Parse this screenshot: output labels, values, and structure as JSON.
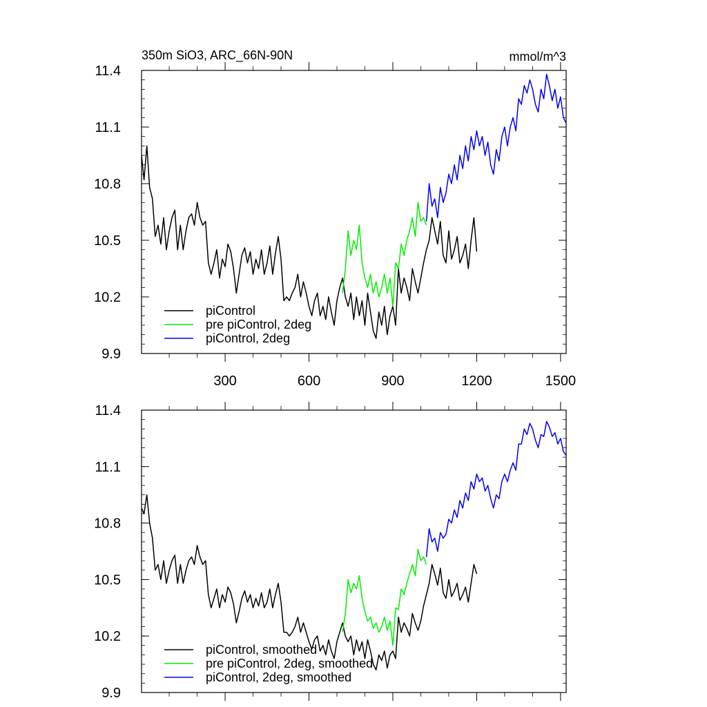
{
  "chart_data": [
    {
      "type": "line",
      "title": "350m SiO3, ARC_66N-90N",
      "units": "mmol/m^3",
      "xlabel": "",
      "ylabel": "",
      "xlim": [
        1,
        1520
      ],
      "ylim": [
        9.9,
        11.4
      ],
      "x_ticks": [
        300,
        600,
        900,
        1200,
        1500
      ],
      "y_ticks": [
        9.9,
        10.2,
        10.5,
        10.8,
        11.1,
        11.4
      ],
      "x_tick_labels": [
        "300",
        "600",
        "900",
        "1200",
        "1500"
      ],
      "y_tick_labels": [
        "9.9",
        "10.2",
        "10.5",
        "10.8",
        "11.1",
        "11.4"
      ],
      "grid": false,
      "legend_position": "bottom-left",
      "series": [
        {
          "name": "piControl",
          "color": "#000000",
          "x": [
            1,
            10,
            20,
            30,
            40,
            50,
            60,
            70,
            80,
            90,
            100,
            110,
            120,
            130,
            140,
            150,
            160,
            170,
            180,
            190,
            200,
            210,
            220,
            230,
            240,
            250,
            260,
            270,
            280,
            290,
            300,
            310,
            320,
            330,
            340,
            350,
            360,
            370,
            380,
            390,
            400,
            410,
            420,
            430,
            440,
            450,
            460,
            470,
            480,
            490,
            500,
            510,
            520,
            530,
            540,
            550,
            560,
            570,
            580,
            590,
            600,
            610,
            620,
            630,
            640,
            650,
            660,
            670,
            680,
            690,
            700,
            710,
            720,
            730,
            740,
            750,
            760,
            770,
            780,
            790,
            800,
            810,
            820,
            830,
            840,
            850,
            860,
            870,
            880,
            890,
            900,
            910,
            920,
            930,
            940,
            950,
            960,
            970,
            980,
            990,
            1000,
            1010,
            1020,
            1030,
            1040,
            1050,
            1060,
            1070,
            1080,
            1090,
            1100,
            1110,
            1120,
            1130,
            1140,
            1150,
            1160,
            1170,
            1180,
            1190,
            1200
          ],
          "y": [
            10.95,
            10.82,
            11.0,
            10.78,
            10.72,
            10.52,
            10.58,
            10.48,
            10.62,
            10.45,
            10.55,
            10.62,
            10.66,
            10.45,
            10.58,
            10.45,
            10.55,
            10.62,
            10.64,
            10.58,
            10.7,
            10.62,
            10.58,
            10.6,
            10.38,
            10.32,
            10.38,
            10.45,
            10.3,
            10.4,
            10.36,
            10.48,
            10.44,
            10.35,
            10.22,
            10.32,
            10.42,
            10.46,
            10.38,
            10.44,
            10.32,
            10.4,
            10.35,
            10.45,
            10.32,
            10.38,
            10.47,
            10.32,
            10.43,
            10.52,
            10.4,
            10.18,
            10.2,
            10.18,
            10.22,
            10.25,
            10.32,
            10.2,
            10.28,
            10.22,
            10.15,
            10.1,
            10.18,
            10.22,
            10.1,
            10.15,
            10.08,
            10.2,
            10.12,
            10.05,
            10.18,
            10.25,
            10.3,
            10.2,
            10.15,
            10.22,
            10.08,
            10.2,
            10.1,
            10.18,
            10.05,
            10.22,
            10.12,
            10.02,
            9.98,
            10.12,
            10.05,
            10.15,
            10.0,
            10.1,
            10.15,
            10.05,
            10.35,
            10.22,
            10.3,
            10.25,
            10.18,
            10.35,
            10.28,
            10.22,
            10.3,
            10.38,
            10.45,
            10.5,
            10.62,
            10.55,
            10.48,
            10.6,
            10.42,
            10.38,
            10.55,
            10.4,
            10.45,
            10.52,
            10.38,
            10.42,
            10.48,
            10.35,
            10.5,
            10.62,
            10.44
          ]
        },
        {
          "name": "pre piControl, 2deg",
          "color": "#00ee00",
          "x": [
            720,
            730,
            740,
            750,
            760,
            770,
            780,
            790,
            800,
            810,
            820,
            830,
            840,
            850,
            860,
            870,
            880,
            890,
            900,
            910,
            920,
            930,
            940,
            950,
            960,
            970,
            980,
            990,
            1000,
            1010,
            1020
          ],
          "y": [
            10.22,
            10.35,
            10.55,
            10.42,
            10.5,
            10.45,
            10.58,
            10.38,
            10.3,
            10.25,
            10.32,
            10.22,
            10.28,
            10.2,
            10.25,
            10.32,
            10.22,
            10.3,
            10.15,
            10.38,
            10.35,
            10.48,
            10.42,
            10.5,
            10.55,
            10.62,
            10.52,
            10.7,
            10.6,
            10.62,
            10.58
          ]
        },
        {
          "name": "piControl, 2deg",
          "color": "#0000ee",
          "x": [
            1020,
            1030,
            1040,
            1050,
            1060,
            1070,
            1080,
            1090,
            1100,
            1110,
            1120,
            1130,
            1140,
            1150,
            1160,
            1170,
            1180,
            1190,
            1200,
            1210,
            1220,
            1230,
            1240,
            1250,
            1260,
            1270,
            1280,
            1290,
            1300,
            1310,
            1320,
            1330,
            1340,
            1350,
            1360,
            1370,
            1380,
            1390,
            1400,
            1410,
            1420,
            1430,
            1440,
            1450,
            1460,
            1470,
            1480,
            1490,
            1500,
            1510,
            1520
          ],
          "y": [
            10.6,
            10.8,
            10.68,
            10.72,
            10.62,
            10.78,
            10.7,
            10.75,
            10.85,
            10.8,
            10.9,
            10.82,
            10.95,
            10.88,
            11.0,
            10.92,
            11.05,
            10.98,
            11.08,
            11.0,
            11.05,
            10.95,
            11.02,
            10.9,
            10.85,
            10.98,
            10.92,
            11.05,
            11.1,
            11.0,
            11.1,
            11.15,
            11.08,
            11.25,
            11.22,
            11.32,
            11.28,
            11.35,
            11.3,
            11.22,
            11.18,
            11.3,
            11.25,
            11.38,
            11.32,
            11.24,
            11.3,
            11.2,
            11.26,
            11.15,
            11.12
          ]
        }
      ]
    },
    {
      "type": "line",
      "title": "",
      "units": "",
      "xlabel": "",
      "ylabel": "",
      "xlim": [
        1,
        1520
      ],
      "ylim": [
        9.9,
        11.4
      ],
      "x_ticks": [
        300,
        600,
        900,
        1200,
        1500
      ],
      "y_ticks": [
        9.9,
        10.2,
        10.5,
        10.8,
        11.1,
        11.4
      ],
      "x_tick_labels": [],
      "y_tick_labels": [
        "9.9",
        "10.2",
        "10.5",
        "10.8",
        "11.1",
        "11.4"
      ],
      "grid": false,
      "legend_position": "bottom-left",
      "series": [
        {
          "name": "piControl, smoothed",
          "color": "#000000",
          "x": [
            1,
            10,
            20,
            30,
            40,
            50,
            60,
            70,
            80,
            90,
            100,
            110,
            120,
            130,
            140,
            150,
            160,
            170,
            180,
            190,
            200,
            210,
            220,
            230,
            240,
            250,
            260,
            270,
            280,
            290,
            300,
            310,
            320,
            330,
            340,
            350,
            360,
            370,
            380,
            390,
            400,
            410,
            420,
            430,
            440,
            450,
            460,
            470,
            480,
            490,
            500,
            510,
            520,
            530,
            540,
            550,
            560,
            570,
            580,
            590,
            600,
            610,
            620,
            630,
            640,
            650,
            660,
            670,
            680,
            690,
            700,
            710,
            720,
            730,
            740,
            750,
            760,
            770,
            780,
            790,
            800,
            810,
            820,
            830,
            840,
            850,
            860,
            870,
            880,
            890,
            900,
            910,
            920,
            930,
            940,
            950,
            960,
            970,
            980,
            990,
            1000,
            1010,
            1020,
            1030,
            1040,
            1050,
            1060,
            1070,
            1080,
            1090,
            1100,
            1110,
            1120,
            1130,
            1140,
            1150,
            1160,
            1170,
            1180,
            1190,
            1200
          ],
          "y": [
            10.88,
            10.85,
            10.95,
            10.8,
            10.72,
            10.55,
            10.58,
            10.5,
            10.6,
            10.48,
            10.55,
            10.6,
            10.63,
            10.48,
            10.58,
            10.48,
            10.55,
            10.6,
            10.62,
            10.58,
            10.68,
            10.62,
            10.58,
            10.6,
            10.42,
            10.35,
            10.4,
            10.45,
            10.35,
            10.42,
            10.38,
            10.46,
            10.43,
            10.37,
            10.27,
            10.33,
            10.4,
            10.44,
            10.38,
            10.42,
            10.35,
            10.4,
            10.36,
            10.43,
            10.35,
            10.38,
            10.45,
            10.35,
            10.42,
            10.48,
            10.38,
            10.22,
            10.22,
            10.2,
            10.22,
            10.25,
            10.3,
            10.22,
            10.27,
            10.22,
            10.17,
            10.13,
            10.18,
            10.2,
            10.12,
            10.15,
            10.1,
            10.18,
            10.12,
            10.08,
            10.17,
            10.22,
            10.27,
            10.2,
            10.17,
            10.2,
            10.1,
            10.18,
            10.12,
            10.17,
            10.08,
            10.18,
            10.12,
            10.05,
            10.02,
            10.1,
            10.07,
            10.12,
            10.03,
            10.1,
            10.12,
            10.08,
            10.3,
            10.22,
            10.27,
            10.24,
            10.2,
            10.32,
            10.27,
            10.23,
            10.28,
            10.36,
            10.42,
            10.48,
            10.58,
            10.53,
            10.47,
            10.56,
            10.43,
            10.4,
            10.5,
            10.41,
            10.44,
            10.48,
            10.39,
            10.42,
            10.46,
            10.38,
            10.48,
            10.58,
            10.53
          ]
        },
        {
          "name": "pre piControl, 2deg, smoothed",
          "color": "#00ee00",
          "x": [
            720,
            730,
            740,
            750,
            760,
            770,
            780,
            790,
            800,
            810,
            820,
            830,
            840,
            850,
            860,
            870,
            880,
            890,
            900,
            910,
            920,
            930,
            940,
            950,
            960,
            970,
            980,
            990,
            1000,
            1010,
            1020
          ],
          "y": [
            10.22,
            10.32,
            10.5,
            10.43,
            10.48,
            10.45,
            10.52,
            10.4,
            10.33,
            10.28,
            10.3,
            10.24,
            10.27,
            10.22,
            10.25,
            10.3,
            10.23,
            10.28,
            10.15,
            10.35,
            10.34,
            10.45,
            10.42,
            10.48,
            10.53,
            10.58,
            10.52,
            10.66,
            10.6,
            10.62,
            10.58
          ]
        },
        {
          "name": "piControl, 2deg, smoothed",
          "color": "#0000ee",
          "x": [
            1020,
            1030,
            1040,
            1050,
            1060,
            1070,
            1080,
            1090,
            1100,
            1110,
            1120,
            1130,
            1140,
            1150,
            1160,
            1170,
            1180,
            1190,
            1200,
            1210,
            1220,
            1230,
            1240,
            1250,
            1260,
            1270,
            1280,
            1290,
            1300,
            1310,
            1320,
            1330,
            1340,
            1350,
            1360,
            1370,
            1380,
            1390,
            1400,
            1410,
            1420,
            1430,
            1440,
            1450,
            1460,
            1470,
            1480,
            1490,
            1500,
            1510,
            1520
          ],
          "y": [
            10.62,
            10.77,
            10.7,
            10.72,
            10.65,
            10.75,
            10.72,
            10.74,
            10.82,
            10.8,
            10.87,
            10.83,
            10.92,
            10.88,
            10.96,
            10.92,
            11.02,
            10.98,
            11.06,
            11.02,
            11.04,
            10.97,
            11.0,
            10.93,
            10.88,
            10.95,
            10.93,
            11.02,
            11.06,
            11.02,
            11.08,
            11.12,
            11.08,
            11.22,
            11.22,
            11.3,
            11.27,
            11.33,
            11.3,
            11.24,
            11.2,
            11.27,
            11.26,
            11.34,
            11.31,
            11.26,
            11.28,
            11.22,
            11.25,
            11.18,
            11.16
          ]
        }
      ]
    }
  ]
}
